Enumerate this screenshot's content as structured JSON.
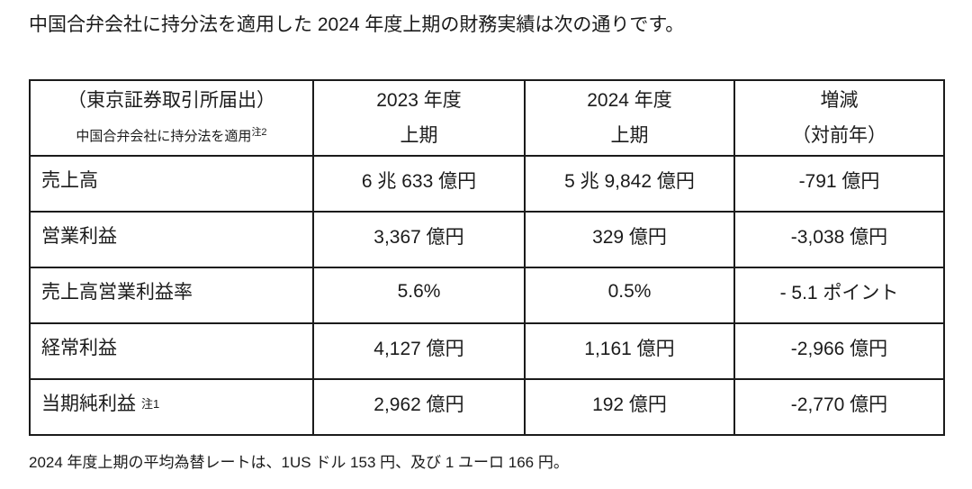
{
  "page": {
    "title": "中国合弁会社に持分法を適用した 2024 年度上期の財務実績は次の通りです。",
    "footer": "2024 年度上期の平均為替レートは、1US ドル 153 円、及び 1 ユーロ 166 円。"
  },
  "table": {
    "header": {
      "col1_line1": "（東京証券取引所届出）",
      "col1_line2": "中国合弁会社に持分法を適用",
      "col1_note": "注2",
      "col2_line1": "2023 年度",
      "col2_line2": "上期",
      "col3_line1": "2024 年度",
      "col3_line2": "上期",
      "col4_line1": "増減",
      "col4_line2": "（対前年）"
    },
    "rows": [
      {
        "label": "売上高",
        "note": "",
        "fy2023": "6 兆 633 億円",
        "fy2024": "5 兆 9,842 億円",
        "change": "-791 億円"
      },
      {
        "label": "営業利益",
        "note": "",
        "fy2023": "3,367 億円",
        "fy2024": "329 億円",
        "change": "-3,038 億円"
      },
      {
        "label": "売上高営業利益率",
        "note": "",
        "fy2023": "5.6%",
        "fy2024": "0.5%",
        "change": "- 5.1 ポイント"
      },
      {
        "label": "経常利益",
        "note": "",
        "fy2023": "4,127 億円",
        "fy2024": "1,161 億円",
        "change": "-2,966 億円"
      },
      {
        "label": "当期純利益",
        "note": "注1",
        "fy2023": "2,962 億円",
        "fy2024": "192 億円",
        "change": "-2,770 億円"
      }
    ]
  },
  "colors": {
    "text": "#1b1b1b",
    "border": "#1b1b1b",
    "background": "#ffffff"
  }
}
